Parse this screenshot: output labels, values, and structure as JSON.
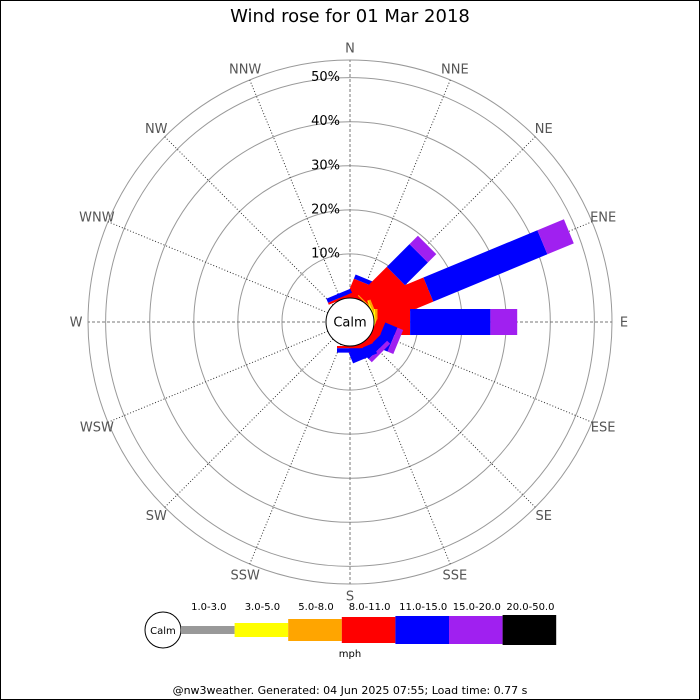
{
  "chart_data": {
    "type": "windrose",
    "title": "Wind rose for 01 Mar 2018",
    "directions": [
      "N",
      "NNE",
      "NE",
      "ENE",
      "E",
      "ESE",
      "SE",
      "SSE",
      "S",
      "SSW",
      "SW",
      "WSW",
      "W",
      "WNW",
      "NW",
      "NNW"
    ],
    "series": [
      {
        "name": "1.0-3.0",
        "color": "#999999",
        "values": [
          0,
          0,
          0,
          0,
          0,
          0,
          0,
          0,
          0,
          0,
          0,
          0,
          0,
          0,
          0,
          0
        ]
      },
      {
        "name": "3.0-5.0",
        "color": "#ffff00",
        "values": [
          0,
          0,
          0,
          0.3,
          0.3,
          0,
          0,
          0,
          0,
          0,
          0,
          0,
          0,
          0,
          0,
          0
        ]
      },
      {
        "name": "5.0-8.0",
        "color": "#ffa500",
        "values": [
          0,
          0,
          0.3,
          0.5,
          0.5,
          0,
          0,
          0,
          0,
          0,
          0,
          0,
          0,
          0,
          0,
          0
        ]
      },
      {
        "name": "8.0-11.0",
        "color": "#ff0000",
        "values": [
          0.5,
          4,
          9,
          13,
          7.4,
          2,
          1.5,
          1,
          0.5,
          0,
          0,
          0,
          0,
          0,
          0,
          0.5
        ]
      },
      {
        "name": "11.0-15.0",
        "color": "#0000ff",
        "values": [
          0.5,
          1,
          7.3,
          28,
          18.2,
          3,
          2,
          2.5,
          1,
          0,
          0,
          0,
          0,
          0,
          0,
          1
        ]
      },
      {
        "name": "15.0-20.0",
        "color": "#a020f0",
        "values": [
          0,
          0,
          2.7,
          6.5,
          6.1,
          1.4,
          1,
          0,
          0,
          0,
          0,
          0,
          0,
          0,
          0,
          0
        ]
      },
      {
        "name": "20.0-50.0",
        "color": "#000000",
        "values": [
          0,
          0,
          0,
          0,
          0,
          0,
          0,
          0,
          0,
          0,
          0,
          0,
          0,
          0,
          0,
          0
        ]
      }
    ],
    "rlim": [
      0,
      54
    ],
    "rticks": [
      {
        "value": 10,
        "label": "10%"
      },
      {
        "value": 20,
        "label": "20%"
      },
      {
        "value": 30,
        "label": "30%"
      },
      {
        "value": 40,
        "label": "40%"
      },
      {
        "value": 50,
        "label": "50%"
      }
    ],
    "calm_label": "Calm",
    "unit": "mph",
    "footer": "@nw3weather. Generated: 04 Jun 2025 07:55; Load time: 0.77 s"
  }
}
